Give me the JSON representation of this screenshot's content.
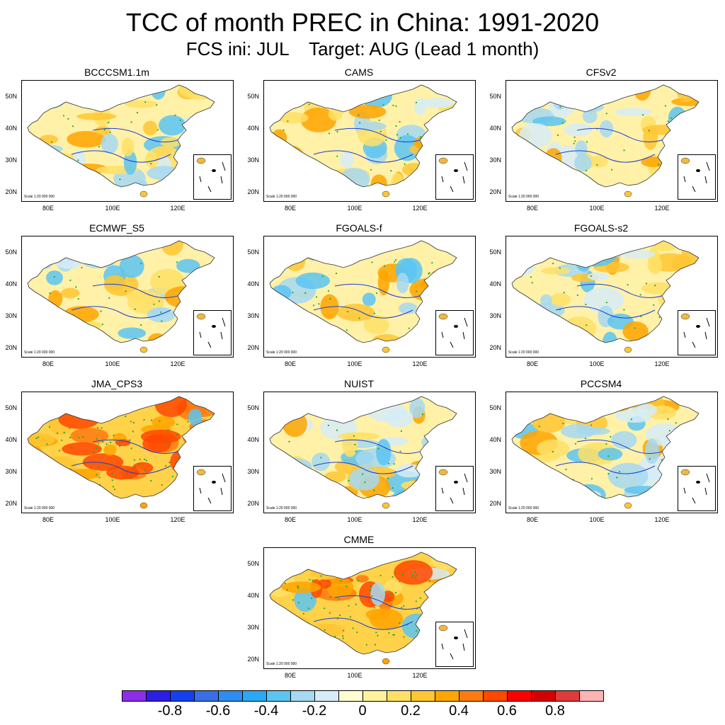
{
  "title": "TCC of month PREC in China: 1991-2020",
  "subtitle": "FCS ini: JUL    Target: AUG (Lead 1 month)",
  "y_ticks": [
    "50N",
    "40N",
    "30N",
    "20N"
  ],
  "x_ticks": [
    "80E",
    "100E",
    "120E"
  ],
  "scale_text": "Scale 1:20 000 000",
  "panels": [
    {
      "name": "BCCCSM1.1m",
      "tone": "mixed"
    },
    {
      "name": "CAMS",
      "tone": "mixed"
    },
    {
      "name": "CFSv2",
      "tone": "mixed"
    },
    {
      "name": "ECMWF_S5",
      "tone": "mixed"
    },
    {
      "name": "FGOALS-f",
      "tone": "mixed"
    },
    {
      "name": "FGOALS-s2",
      "tone": "mixed"
    },
    {
      "name": "JMA_CPS3",
      "tone": "positive"
    },
    {
      "name": "NUIST",
      "tone": "mixed"
    },
    {
      "name": "PCCSM4",
      "tone": "mixed"
    },
    {
      "name": "CMME",
      "tone": "positive"
    }
  ],
  "colorbar": {
    "colors": [
      "#8c2ee8",
      "#2b1fe6",
      "#1540f0",
      "#3a6ee6",
      "#2f8cf0",
      "#2aa8f5",
      "#5cc4f2",
      "#a6d8f2",
      "#d6ecf8",
      "#fffdd0",
      "#fff29a",
      "#ffe066",
      "#ffc633",
      "#ffa500",
      "#ff7a10",
      "#ff4800",
      "#ff0000",
      "#d40000",
      "#e03a3a",
      "#ffb4b4"
    ],
    "tick_labels": [
      "-0.8",
      "-0.6",
      "-0.4",
      "-0.2",
      "0",
      "0.2",
      "0.4",
      "0.6",
      "0.8"
    ]
  }
}
